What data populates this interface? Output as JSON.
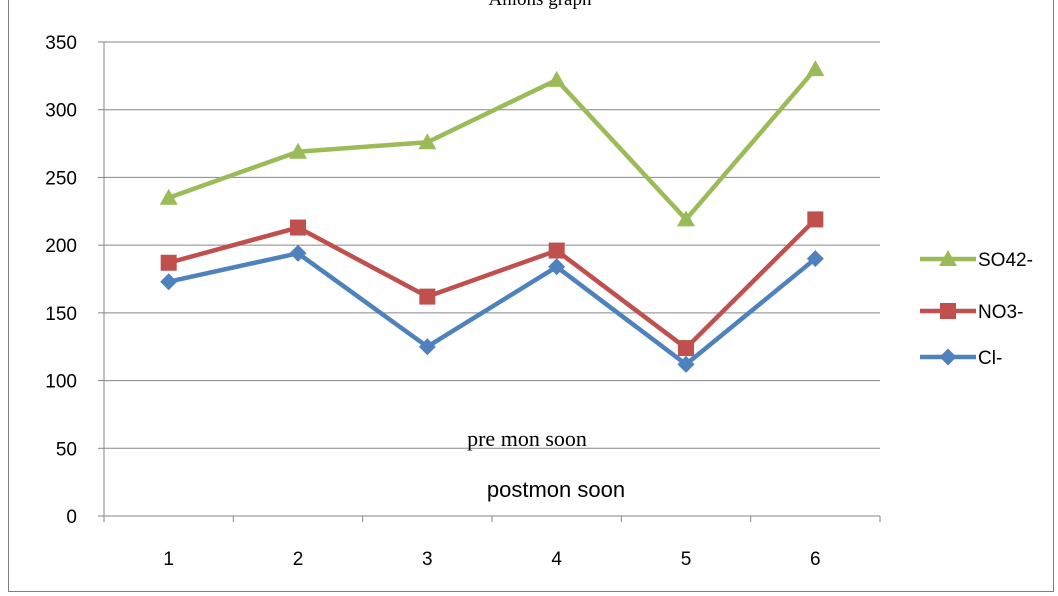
{
  "chart_data": {
    "type": "line",
    "title": "Anions graph",
    "categories": [
      "1",
      "2",
      "3",
      "4",
      "5",
      "6"
    ],
    "ylim": [
      0,
      350
    ],
    "y_ticks": [
      "0",
      "50",
      "100",
      "150",
      "200",
      "250",
      "300",
      "350"
    ],
    "grid": true,
    "legend_position": "right",
    "series": [
      {
        "name": "SO42-",
        "color": "#9bbb59",
        "marker": "triangle",
        "values": [
          235,
          269,
          276,
          322,
          219,
          330
        ]
      },
      {
        "name": "NO3-",
        "color": "#c0504d",
        "marker": "square",
        "values": [
          187,
          213,
          162,
          196,
          124,
          219
        ]
      },
      {
        "name": "Cl-",
        "color": "#4f81bd",
        "marker": "diamond",
        "values": [
          173,
          194,
          125,
          184,
          112,
          190
        ]
      }
    ],
    "annotations": [
      {
        "text": "pre mon soon",
        "style": "serif"
      },
      {
        "text": "postmon soon",
        "style": "sans"
      }
    ]
  }
}
